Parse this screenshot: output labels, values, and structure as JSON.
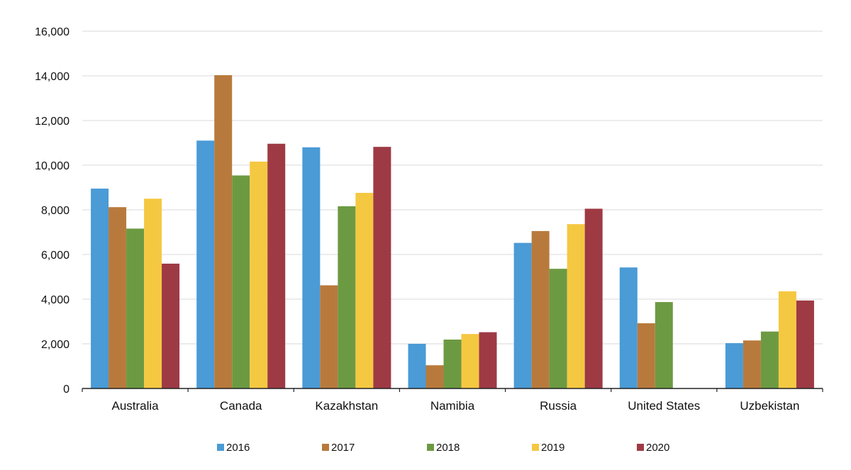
{
  "chart_data": {
    "type": "bar",
    "categories": [
      "Australia",
      "Canada",
      "Kazakhstan",
      "Namibia",
      "Russia",
      "United States",
      "Uzbekistan"
    ],
    "series": [
      {
        "name": "2016",
        "color": "#4a9bd6",
        "values": [
          8950,
          11100,
          10800,
          2000,
          6520,
          5420,
          2030
        ]
      },
      {
        "name": "2017",
        "color": "#b87a3c",
        "values": [
          8120,
          14030,
          4620,
          1040,
          7050,
          2920,
          2150
        ]
      },
      {
        "name": "2018",
        "color": "#6c9a42",
        "values": [
          7160,
          9540,
          8160,
          2190,
          5360,
          3870,
          2550
        ]
      },
      {
        "name": "2019",
        "color": "#f5c842",
        "values": [
          8500,
          10160,
          8760,
          2440,
          7360,
          0,
          4350
        ]
      },
      {
        "name": "2020",
        "color": "#9e3a44",
        "values": [
          5590,
          10960,
          10820,
          2520,
          8050,
          0,
          3940
        ]
      }
    ],
    "yticks": [
      "0",
      "2,000",
      "4,000",
      "6,000",
      "8,000",
      "10,000",
      "12,000",
      "14,000",
      "16,000"
    ],
    "ylim": [
      0,
      16000
    ],
    "grid": true,
    "legend_position": "bottom"
  }
}
